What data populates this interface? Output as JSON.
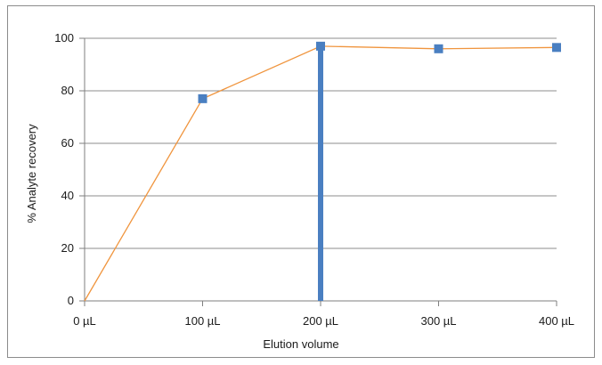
{
  "chart_data": {
    "type": "line",
    "title": "",
    "xlabel": "Elution volume",
    "ylabel": "% Analyte recovery",
    "x_categories": [
      "0 µL",
      "100 µL",
      "200 µL",
      "300 µL",
      "400 µL"
    ],
    "x_values": [
      0,
      100,
      200,
      300,
      400
    ],
    "ylim": [
      0,
      100
    ],
    "yticks": [
      0,
      20,
      40,
      60,
      80,
      100
    ],
    "grid": true,
    "legend": "none",
    "series": [
      {
        "points": [
          {
            "x": 0,
            "y": 0
          },
          {
            "x": 100,
            "y": 77
          },
          {
            "x": 200,
            "y": 97
          },
          {
            "x": 300,
            "y": 96
          },
          {
            "x": 400,
            "y": 96.5
          }
        ],
        "line_color": "#f0953e",
        "marker_color": "#4a7fc1",
        "marker": "square"
      }
    ],
    "highlight_bar": {
      "x": 200,
      "y": 97,
      "color": "#4a7fc1"
    }
  }
}
